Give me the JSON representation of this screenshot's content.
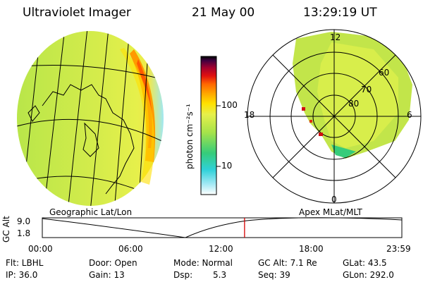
{
  "header": {
    "instrument": "Ultraviolet Imager",
    "date": "21 May 00",
    "time": "13:29:19 UT"
  },
  "colorbar": {
    "ticks": [
      "100",
      "10"
    ],
    "label": "photon cm⁻²s⁻¹",
    "colors": [
      "#ffffff",
      "#9fe8f4",
      "#2fd1d8",
      "#36cc7a",
      "#a6e34a",
      "#e6f04b",
      "#ffe000",
      "#ffa800",
      "#ff6600",
      "#e01010",
      "#a00030",
      "#400040",
      "#000000"
    ]
  },
  "polar": {
    "mlt_top": "12",
    "mlt_left": "18",
    "mlt_right": "6",
    "mlt_bottom": "0",
    "lat_rings": [
      "60",
      "70",
      "80"
    ]
  },
  "timeline": {
    "left_title": "Geographic Lat/Lon",
    "right_title": "Apex MLat/MLT",
    "axis_label": "GC Alt",
    "y_top": "9.0",
    "y_bottom": "1.8",
    "ticks": [
      "00:00",
      "06:00",
      "12:00",
      "18:00",
      "23:59"
    ],
    "current_time_fraction": 0.5625,
    "marker_color": "#d40000"
  },
  "footer": {
    "flt": "Flt: LBHL",
    "door": "Door: Open",
    "mode": "Mode: Normal",
    "gc_alt": "GC Alt: 7.1 Re",
    "glat": "GLat:  43.5",
    "ip": "IP: 36.0",
    "gain": "Gain: 13",
    "dsp_label": "Dsp:",
    "dsp_value": "5.3",
    "seq": "Seq: 39",
    "glon": "GLon: 292.0"
  }
}
